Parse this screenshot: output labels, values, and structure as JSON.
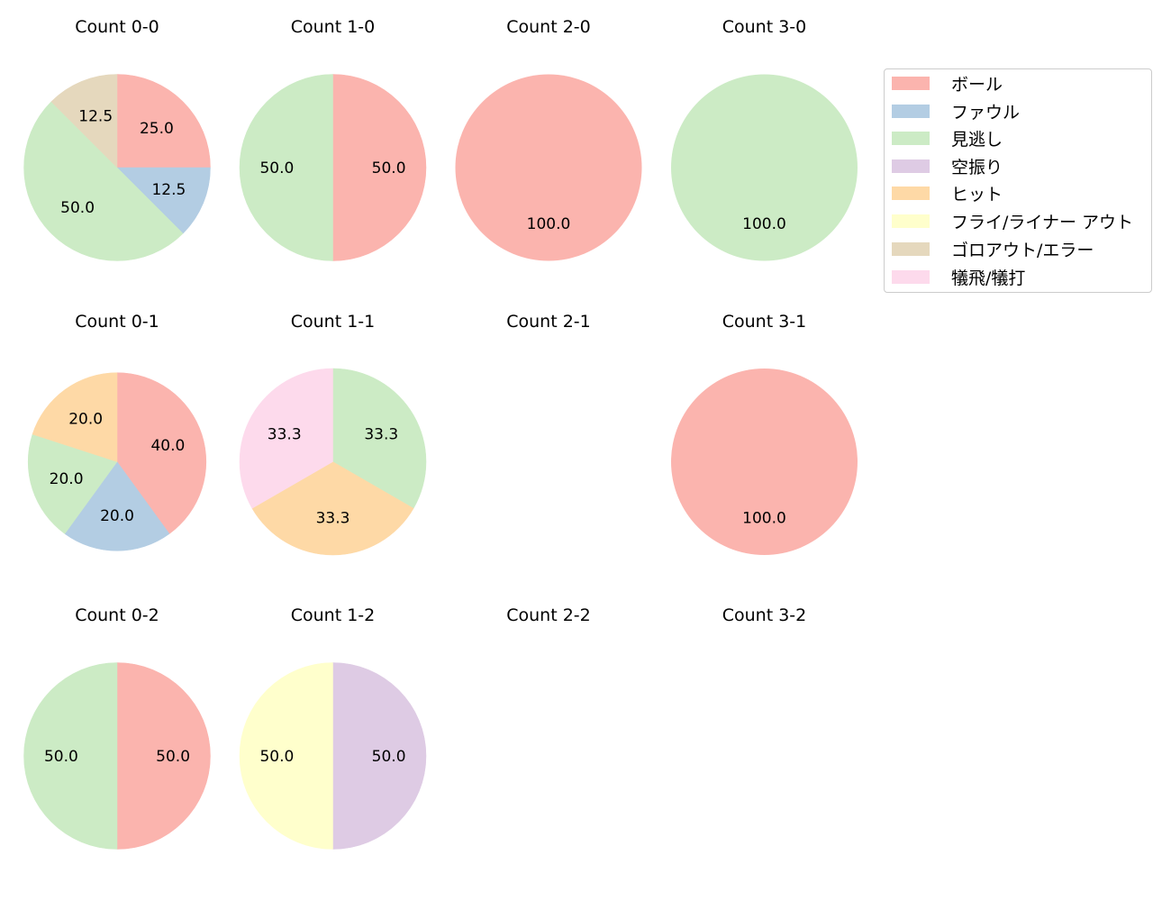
{
  "chart_data": {
    "type": "pie",
    "legend": {
      "position": "upper right",
      "entries": [
        {
          "label": "ボール",
          "color": "#fbb4ae"
        },
        {
          "label": "ファウル",
          "color": "#b3cde3"
        },
        {
          "label": "見逃し",
          "color": "#ccebc5"
        },
        {
          "label": "空振り",
          "color": "#decbe4"
        },
        {
          "label": "ヒット",
          "color": "#fed9a6"
        },
        {
          "label": "フライ/ライナー アウト",
          "color": "#ffffcc"
        },
        {
          "label": "ゴロアウト/エラー",
          "color": "#e5d8bd"
        },
        {
          "label": "犠飛/犠打",
          "color": "#fddaec"
        }
      ]
    },
    "subplots": [
      {
        "title": "Count 0-0",
        "row": 0,
        "col": 0,
        "slices": [
          {
            "label": "ボール",
            "value": 25.0
          },
          {
            "label": "ファウル",
            "value": 12.5
          },
          {
            "label": "見逃し",
            "value": 50.0
          },
          {
            "label": "ゴロアウト/エラー",
            "value": 12.5
          }
        ]
      },
      {
        "title": "Count 1-0",
        "row": 0,
        "col": 1,
        "slices": [
          {
            "label": "ボール",
            "value": 50.0
          },
          {
            "label": "見逃し",
            "value": 50.0
          }
        ]
      },
      {
        "title": "Count 2-0",
        "row": 0,
        "col": 2,
        "slices": [
          {
            "label": "ボール",
            "value": 100.0
          }
        ]
      },
      {
        "title": "Count 3-0",
        "row": 0,
        "col": 3,
        "slices": [
          {
            "label": "見逃し",
            "value": 100.0
          }
        ]
      },
      {
        "title": "Count 0-1",
        "row": 1,
        "col": 0,
        "radius_scale": 0.955,
        "slices": [
          {
            "label": "ボール",
            "value": 40.0
          },
          {
            "label": "ファウル",
            "value": 20.0
          },
          {
            "label": "見逃し",
            "value": 20.0
          },
          {
            "label": "ヒット",
            "value": 20.0
          }
        ]
      },
      {
        "title": "Count 1-1",
        "row": 1,
        "col": 1,
        "slices": [
          {
            "label": "見逃し",
            "value": 33.3
          },
          {
            "label": "ヒット",
            "value": 33.3
          },
          {
            "label": "犠飛/犠打",
            "value": 33.3
          }
        ]
      },
      {
        "title": "Count 2-1",
        "row": 1,
        "col": 2,
        "slices": []
      },
      {
        "title": "Count 3-1",
        "row": 1,
        "col": 3,
        "slices": [
          {
            "label": "ボール",
            "value": 100.0
          }
        ]
      },
      {
        "title": "Count 0-2",
        "row": 2,
        "col": 0,
        "slices": [
          {
            "label": "ボール",
            "value": 50.0
          },
          {
            "label": "見逃し",
            "value": 50.0
          }
        ]
      },
      {
        "title": "Count 1-2",
        "row": 2,
        "col": 1,
        "slices": [
          {
            "label": "空振り",
            "value": 50.0
          },
          {
            "label": "フライ/ライナー アウト",
            "value": 50.0
          }
        ]
      },
      {
        "title": "Count 2-2",
        "row": 2,
        "col": 2,
        "slices": []
      },
      {
        "title": "Count 3-2",
        "row": 2,
        "col": 3,
        "slices": []
      }
    ],
    "label_format": "%.1f",
    "start_angle": 90,
    "direction": "clockwise"
  }
}
